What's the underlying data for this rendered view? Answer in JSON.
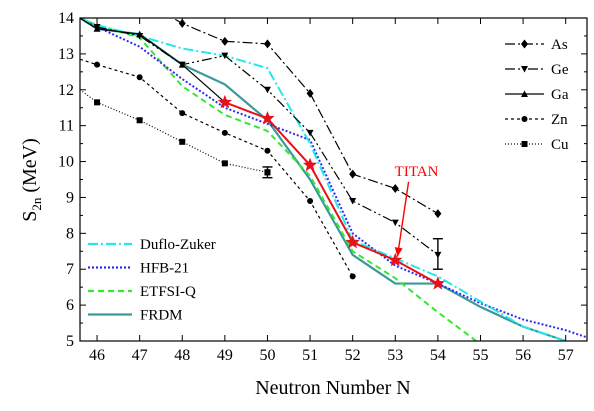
{
  "chart_data": {
    "type": "line",
    "title": "",
    "xlabel": "Neutron Number N",
    "ylabel_main": "S",
    "ylabel_sub": "2n",
    "ylabel_unit": " (MeV)",
    "xlim": [
      45.6,
      57.5
    ],
    "ylim": [
      5,
      14
    ],
    "x_ticks": [
      46,
      47,
      48,
      49,
      50,
      51,
      52,
      53,
      54,
      55,
      56,
      57
    ],
    "y_ticks": [
      5,
      6,
      7,
      8,
      9,
      10,
      11,
      12,
      13,
      14
    ],
    "grid": false,
    "legend_isotopes_position": "top-right",
    "legend_models_position": "bottom-left",
    "annotation": {
      "text": "TITAN",
      "color": "#ff0000",
      "x": 53.5,
      "y": 9.6,
      "arrow_to": [
        53.05,
        7.35
      ]
    },
    "series": [
      {
        "name": "As",
        "marker": "diamond",
        "dash": "10,3,2,3",
        "color": "#000000",
        "x": [
          46,
          48,
          49,
          50,
          51,
          52,
          53,
          54
        ],
        "y": [
          15.2,
          13.85,
          13.35,
          13.28,
          11.9,
          9.65,
          9.25,
          8.55
        ]
      },
      {
        "name": "Ge",
        "marker": "triangle-down",
        "dash": "10,3,2,3,2,3",
        "color": "#000000",
        "x": [
          46,
          47,
          48,
          49,
          50,
          51,
          52,
          53,
          54
        ],
        "y": [
          13.75,
          13.5,
          12.7,
          12.95,
          12.0,
          10.8,
          8.9,
          8.3,
          7.4
        ]
      },
      {
        "name": "Ga",
        "marker": "triangle-up",
        "dash": "",
        "color": "#000000",
        "x": [
          45.6,
          46,
          47,
          48,
          49
        ],
        "y": [
          14.0,
          13.7,
          13.55,
          12.7,
          11.65
        ]
      },
      {
        "name": "Zn",
        "marker": "circle",
        "dash": "3,3",
        "color": "#000000",
        "x": [
          45.6,
          46,
          47,
          48,
          49,
          50,
          51,
          52
        ],
        "y": [
          12.85,
          12.7,
          12.35,
          11.35,
          10.8,
          10.3,
          8.9,
          6.8
        ]
      },
      {
        "name": "Cu",
        "marker": "square",
        "dash": "1,2",
        "color": "#000000",
        "x": [
          45.6,
          46,
          47,
          48,
          49,
          50
        ],
        "y": [
          12.0,
          11.65,
          11.15,
          10.55,
          9.95,
          9.7
        ]
      },
      {
        "name": "TITAN",
        "marker": "star",
        "dash": "",
        "color": "#e8101a",
        "x": [
          49,
          50,
          51,
          52,
          53,
          54
        ],
        "y": [
          11.65,
          11.2,
          9.9,
          7.75,
          7.25,
          6.6
        ]
      },
      {
        "name": "Duflo-Zuker",
        "marker": "none",
        "dash": "10,3,2,3",
        "color": "#22e8e8",
        "x": [
          45.6,
          46,
          47,
          48,
          49,
          50,
          51,
          52,
          53,
          54,
          55,
          56,
          57
        ],
        "y": [
          14.0,
          13.8,
          13.5,
          13.15,
          12.95,
          12.6,
          10.5,
          7.8,
          7.3,
          6.8,
          6.1,
          5.4,
          5.0
        ]
      },
      {
        "name": "HFB-21",
        "marker": "none",
        "dash": "2,2",
        "color": "#2c2cf0",
        "x": [
          45.6,
          46,
          47,
          48,
          49,
          50,
          51,
          52,
          53,
          54,
          55,
          56,
          57,
          57.5
        ],
        "y": [
          14.0,
          13.75,
          13.2,
          12.3,
          11.5,
          11.05,
          10.6,
          8.0,
          7.1,
          6.6,
          6.05,
          5.6,
          5.3,
          5.1
        ]
      },
      {
        "name": "ETFSI-Q",
        "marker": "none",
        "dash": "6,4",
        "color": "#33e833",
        "x": [
          45.6,
          46,
          47,
          48,
          49,
          50,
          51,
          52,
          53,
          54,
          54.9
        ],
        "y": [
          14.0,
          13.8,
          13.45,
          12.1,
          11.3,
          10.85,
          9.6,
          7.5,
          6.75,
          5.8,
          5.0
        ]
      },
      {
        "name": "FRDM",
        "marker": "none",
        "dash": "",
        "color": "#3a9a9a",
        "x": [
          45.6,
          46,
          47,
          48,
          49,
          50,
          51,
          52,
          53,
          54,
          55,
          56,
          57
        ],
        "y": [
          14.0,
          13.7,
          13.55,
          12.7,
          12.15,
          11.15,
          9.5,
          7.4,
          6.6,
          6.6,
          5.95,
          5.4,
          5.0
        ]
      }
    ],
    "error_bars": [
      {
        "x": 50,
        "y": 9.7,
        "ymin": 9.55,
        "ymax": 9.85
      },
      {
        "x": 54,
        "y": 7.4,
        "ymin": 7.0,
        "ymax": 7.85
      }
    ]
  }
}
